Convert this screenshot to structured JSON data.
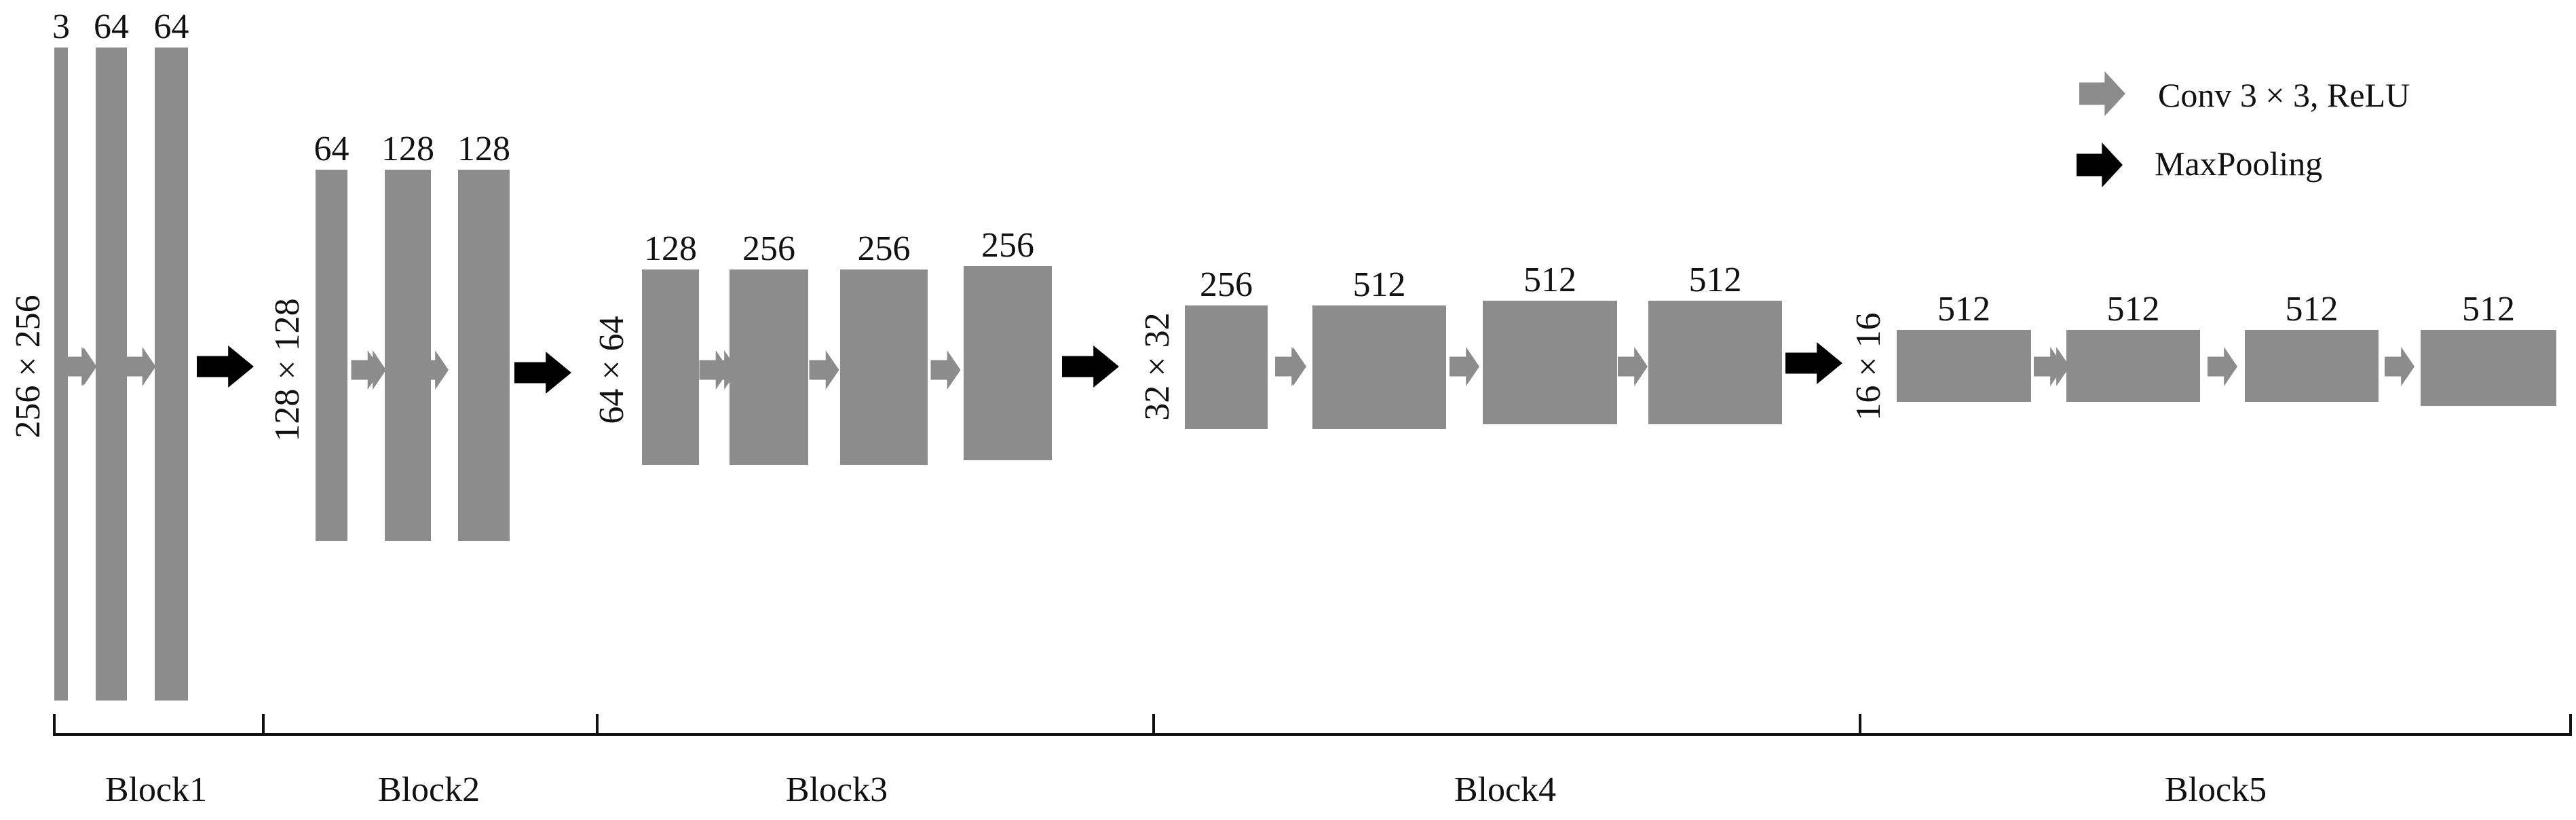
{
  "colors": {
    "feature_map": "#8c8c8c",
    "conv_arrow": "#8c8c8c",
    "pool_arrow": "#000000",
    "axis": "#111111",
    "text": "#111111"
  },
  "legend": {
    "conv": {
      "icon": "gray-arrow-icon",
      "label": "Conv 3 × 3, ReLU"
    },
    "pool": {
      "icon": "black-arrow-icon",
      "label": "MaxPooling"
    }
  },
  "blocks": [
    {
      "name": "Block1",
      "resolution": "256 × 256",
      "channels": [
        "3",
        "64",
        "64"
      ]
    },
    {
      "name": "Block2",
      "resolution": "128 × 128",
      "channels": [
        "64",
        "128",
        "128"
      ]
    },
    {
      "name": "Block3",
      "resolution": "64 × 64",
      "channels": [
        "128",
        "256",
        "256",
        "256"
      ]
    },
    {
      "name": "Block4",
      "resolution": "32 × 32",
      "channels": [
        "256",
        "512",
        "512",
        "512"
      ]
    },
    {
      "name": "Block5",
      "resolution": "16 × 16",
      "channels": [
        "512",
        "512",
        "512",
        "512"
      ]
    }
  ]
}
